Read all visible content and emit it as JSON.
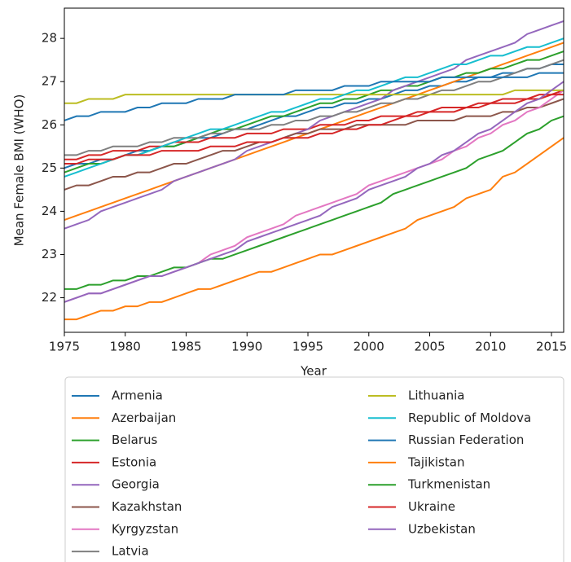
{
  "chart_data": {
    "type": "line",
    "x_label": "Year",
    "y_label": "Mean Female BMI (WHO)",
    "x": [
      1975,
      1976,
      1977,
      1978,
      1979,
      1980,
      1981,
      1982,
      1983,
      1984,
      1985,
      1986,
      1987,
      1988,
      1989,
      1990,
      1991,
      1992,
      1993,
      1994,
      1995,
      1996,
      1997,
      1998,
      1999,
      2000,
      2001,
      2002,
      2003,
      2004,
      2005,
      2006,
      2007,
      2008,
      2009,
      2010,
      2011,
      2012,
      2013,
      2014,
      2015,
      2016
    ],
    "xlim": [
      1975,
      2016
    ],
    "xticks": [
      1975,
      1980,
      1985,
      1990,
      1995,
      2000,
      2005,
      2010,
      2015
    ],
    "ylim": [
      21.2,
      28.7
    ],
    "yticks": [
      22,
      23,
      24,
      25,
      26,
      27,
      28
    ],
    "legend": "below",
    "series": [
      {
        "name": "Armenia",
        "color": "#1f77b4",
        "values": [
          25.0,
          25.1,
          25.1,
          25.2,
          25.2,
          25.3,
          25.4,
          25.4,
          25.5,
          25.5,
          25.6,
          25.7,
          25.7,
          25.8,
          25.9,
          25.9,
          26.0,
          26.1,
          26.2,
          26.2,
          26.3,
          26.4,
          26.4,
          26.5,
          26.5,
          26.6,
          26.6,
          26.7,
          26.8,
          26.8,
          26.9,
          26.9,
          27.0,
          27.0,
          27.1,
          27.1,
          27.2,
          27.2,
          27.3,
          27.3,
          27.4,
          27.4
        ]
      },
      {
        "name": "Azerbaijan",
        "color": "#ff7f0e",
        "values": [
          23.8,
          23.9,
          24.0,
          24.1,
          24.2,
          24.3,
          24.4,
          24.5,
          24.6,
          24.7,
          24.8,
          24.9,
          25.0,
          25.1,
          25.2,
          25.3,
          25.4,
          25.5,
          25.6,
          25.7,
          25.8,
          25.9,
          26.0,
          26.1,
          26.2,
          26.3,
          26.4,
          26.5,
          26.6,
          26.7,
          26.8,
          26.9,
          27.0,
          27.1,
          27.2,
          27.3,
          27.4,
          27.5,
          27.6,
          27.7,
          27.8,
          27.9
        ]
      },
      {
        "name": "Belarus",
        "color": "#2ca02c",
        "values": [
          24.9,
          25.0,
          25.1,
          25.1,
          25.2,
          25.3,
          25.3,
          25.4,
          25.5,
          25.5,
          25.6,
          25.7,
          25.8,
          25.9,
          25.9,
          26.0,
          26.1,
          26.2,
          26.2,
          26.3,
          26.4,
          26.5,
          26.5,
          26.6,
          26.6,
          26.7,
          26.8,
          26.8,
          26.9,
          26.9,
          27.0,
          27.1,
          27.1,
          27.2,
          27.2,
          27.3,
          27.3,
          27.4,
          27.5,
          27.5,
          27.6,
          27.7
        ]
      },
      {
        "name": "Estonia",
        "color": "#d62728",
        "values": [
          25.2,
          25.2,
          25.3,
          25.3,
          25.4,
          25.4,
          25.4,
          25.5,
          25.5,
          25.6,
          25.6,
          25.6,
          25.7,
          25.7,
          25.7,
          25.8,
          25.8,
          25.8,
          25.9,
          25.9,
          25.9,
          26.0,
          26.0,
          26.0,
          26.1,
          26.1,
          26.2,
          26.2,
          26.2,
          26.3,
          26.3,
          26.4,
          26.4,
          26.4,
          26.5,
          26.5,
          26.6,
          26.6,
          26.6,
          26.7,
          26.7,
          26.8
        ]
      },
      {
        "name": "Georgia",
        "color": "#9467bd",
        "values": [
          23.6,
          23.7,
          23.8,
          24.0,
          24.1,
          24.2,
          24.3,
          24.4,
          24.5,
          24.7,
          24.8,
          24.9,
          25.0,
          25.1,
          25.2,
          25.4,
          25.5,
          25.6,
          25.7,
          25.8,
          25.9,
          26.1,
          26.2,
          26.3,
          26.4,
          26.5,
          26.6,
          26.8,
          26.9,
          27.0,
          27.1,
          27.2,
          27.3,
          27.5,
          27.6,
          27.7,
          27.8,
          27.9,
          28.1,
          28.2,
          28.3,
          28.4
        ]
      },
      {
        "name": "Kazakhstan",
        "color": "#8c564b",
        "values": [
          24.5,
          24.6,
          24.6,
          24.7,
          24.8,
          24.8,
          24.9,
          24.9,
          25.0,
          25.1,
          25.1,
          25.2,
          25.3,
          25.4,
          25.4,
          25.5,
          25.6,
          25.6,
          25.7,
          25.8,
          25.8,
          25.9,
          25.9,
          25.9,
          26.0,
          26.0,
          26.0,
          26.0,
          26.0,
          26.1,
          26.1,
          26.1,
          26.1,
          26.2,
          26.2,
          26.2,
          26.3,
          26.3,
          26.4,
          26.4,
          26.5,
          26.6
        ]
      },
      {
        "name": "Kyrgyzstan",
        "color": "#e377c2",
        "values": [
          21.9,
          22.0,
          22.1,
          22.1,
          22.2,
          22.3,
          22.4,
          22.5,
          22.5,
          22.6,
          22.7,
          22.8,
          23.0,
          23.1,
          23.2,
          23.4,
          23.5,
          23.6,
          23.7,
          23.9,
          24.0,
          24.1,
          24.2,
          24.3,
          24.4,
          24.6,
          24.7,
          24.8,
          24.9,
          25.0,
          25.1,
          25.2,
          25.4,
          25.5,
          25.7,
          25.8,
          26.0,
          26.1,
          26.3,
          26.4,
          26.6,
          26.8
        ]
      },
      {
        "name": "Latvia",
        "color": "#7f7f7f",
        "values": [
          25.3,
          25.3,
          25.4,
          25.4,
          25.5,
          25.5,
          25.5,
          25.6,
          25.6,
          25.7,
          25.7,
          25.7,
          25.8,
          25.8,
          25.9,
          25.9,
          25.9,
          26.0,
          26.0,
          26.1,
          26.1,
          26.2,
          26.2,
          26.3,
          26.3,
          26.4,
          26.5,
          26.5,
          26.6,
          26.6,
          26.7,
          26.8,
          26.8,
          26.9,
          27.0,
          27.0,
          27.1,
          27.2,
          27.3,
          27.3,
          27.4,
          27.5
        ]
      },
      {
        "name": "Lithuania",
        "color": "#bcbd22",
        "values": [
          26.5,
          26.5,
          26.6,
          26.6,
          26.6,
          26.7,
          26.7,
          26.7,
          26.7,
          26.7,
          26.7,
          26.7,
          26.7,
          26.7,
          26.7,
          26.7,
          26.7,
          26.7,
          26.7,
          26.7,
          26.7,
          26.7,
          26.7,
          26.7,
          26.7,
          26.7,
          26.7,
          26.7,
          26.7,
          26.7,
          26.7,
          26.7,
          26.7,
          26.7,
          26.7,
          26.7,
          26.7,
          26.8,
          26.8,
          26.8,
          26.8,
          26.8
        ]
      },
      {
        "name": "Republic of Moldova",
        "color": "#17becf",
        "values": [
          24.8,
          24.9,
          25.0,
          25.1,
          25.2,
          25.3,
          25.3,
          25.4,
          25.5,
          25.6,
          25.7,
          25.8,
          25.9,
          25.9,
          26.0,
          26.1,
          26.2,
          26.3,
          26.3,
          26.4,
          26.5,
          26.6,
          26.6,
          26.7,
          26.8,
          26.8,
          26.9,
          27.0,
          27.1,
          27.1,
          27.2,
          27.3,
          27.4,
          27.4,
          27.5,
          27.6,
          27.6,
          27.7,
          27.8,
          27.8,
          27.9,
          28.0
        ]
      },
      {
        "name": "Russian Federation",
        "color": "#1f77b4",
        "values": [
          26.1,
          26.2,
          26.2,
          26.3,
          26.3,
          26.3,
          26.4,
          26.4,
          26.5,
          26.5,
          26.5,
          26.6,
          26.6,
          26.6,
          26.7,
          26.7,
          26.7,
          26.7,
          26.7,
          26.8,
          26.8,
          26.8,
          26.8,
          26.9,
          26.9,
          26.9,
          27.0,
          27.0,
          27.0,
          27.0,
          27.0,
          27.1,
          27.1,
          27.1,
          27.1,
          27.1,
          27.1,
          27.1,
          27.1,
          27.2,
          27.2,
          27.2
        ]
      },
      {
        "name": "Tajikistan",
        "color": "#ff7f0e",
        "values": [
          21.5,
          21.5,
          21.6,
          21.7,
          21.7,
          21.8,
          21.8,
          21.9,
          21.9,
          22.0,
          22.1,
          22.2,
          22.2,
          22.3,
          22.4,
          22.5,
          22.6,
          22.6,
          22.7,
          22.8,
          22.9,
          23.0,
          23.0,
          23.1,
          23.2,
          23.3,
          23.4,
          23.5,
          23.6,
          23.8,
          23.9,
          24.0,
          24.1,
          24.3,
          24.4,
          24.5,
          24.8,
          24.9,
          25.1,
          25.3,
          25.5,
          25.7
        ]
      },
      {
        "name": "Turkmenistan",
        "color": "#2ca02c",
        "values": [
          22.2,
          22.2,
          22.3,
          22.3,
          22.4,
          22.4,
          22.5,
          22.5,
          22.6,
          22.7,
          22.7,
          22.8,
          22.9,
          22.9,
          23.0,
          23.1,
          23.2,
          23.3,
          23.4,
          23.5,
          23.6,
          23.7,
          23.8,
          23.9,
          24.0,
          24.1,
          24.2,
          24.4,
          24.5,
          24.6,
          24.7,
          24.8,
          24.9,
          25.0,
          25.2,
          25.3,
          25.4,
          25.6,
          25.8,
          25.9,
          26.1,
          26.2
        ]
      },
      {
        "name": "Ukraine",
        "color": "#d62728",
        "values": [
          25.1,
          25.1,
          25.2,
          25.2,
          25.2,
          25.3,
          25.3,
          25.3,
          25.4,
          25.4,
          25.4,
          25.4,
          25.5,
          25.5,
          25.5,
          25.6,
          25.6,
          25.6,
          25.7,
          25.7,
          25.7,
          25.8,
          25.8,
          25.9,
          25.9,
          26.0,
          26.0,
          26.1,
          26.2,
          26.2,
          26.3,
          26.3,
          26.3,
          26.4,
          26.4,
          26.5,
          26.5,
          26.5,
          26.6,
          26.6,
          26.7,
          26.7
        ]
      },
      {
        "name": "Uzbekistan",
        "color": "#9467bd",
        "values": [
          21.9,
          22.0,
          22.1,
          22.1,
          22.2,
          22.3,
          22.4,
          22.5,
          22.5,
          22.6,
          22.7,
          22.8,
          22.9,
          23.0,
          23.1,
          23.3,
          23.4,
          23.5,
          23.6,
          23.7,
          23.8,
          23.9,
          24.1,
          24.2,
          24.3,
          24.5,
          24.6,
          24.7,
          24.8,
          25.0,
          25.1,
          25.3,
          25.4,
          25.6,
          25.8,
          25.9,
          26.1,
          26.3,
          26.5,
          26.6,
          26.8,
          27.0
        ]
      }
    ]
  }
}
